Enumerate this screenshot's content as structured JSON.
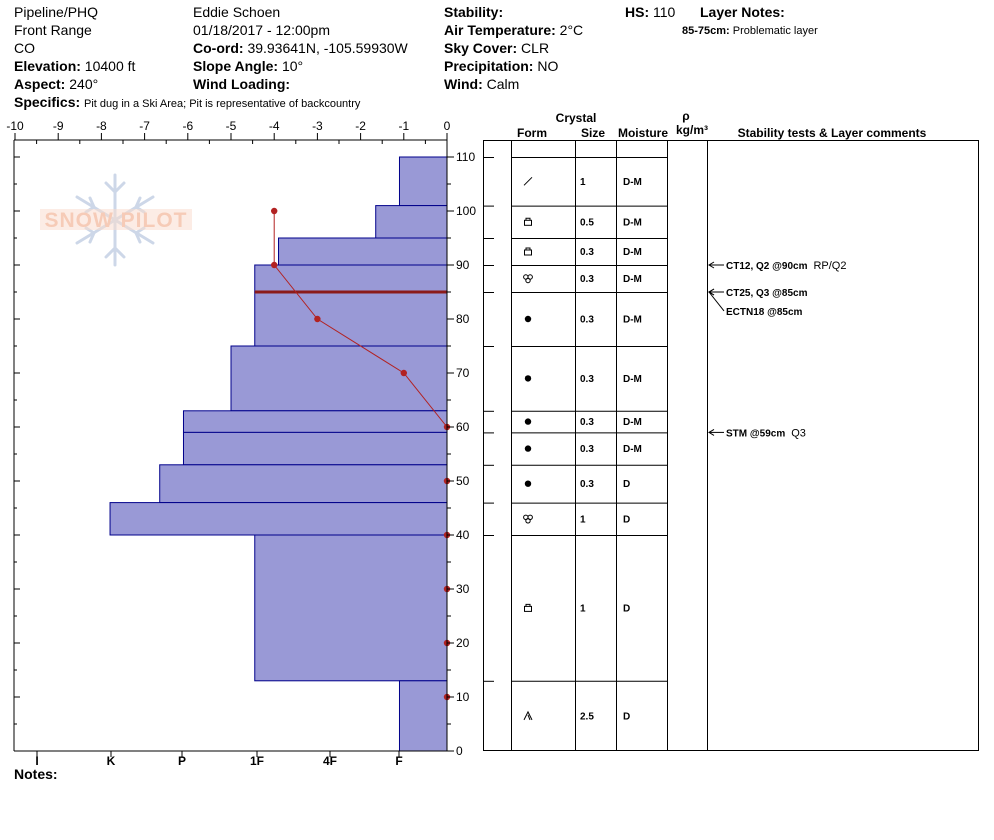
{
  "header": {
    "location": "Pipeline/PHQ",
    "range": "Front Range",
    "state": "CO",
    "elevation_label": "Elevation:",
    "elevation_value": "10400 ft",
    "aspect_label": "Aspect:",
    "aspect_value": "240°",
    "specifics_label": "Specifics:",
    "specifics_value": "Pit dug in a Ski Area; Pit is representative of backcountry",
    "observer": "Eddie Schoen",
    "datetime": "01/18/2017 - 12:00pm",
    "coord_label": "Co-ord:",
    "coord_value": "39.93641N, -105.59930W",
    "slope_label": "Slope Angle:",
    "slope_value": "10°",
    "wind_loading_label": "Wind Loading:",
    "wind_loading_value": "",
    "stability_label": "Stability:",
    "stability_value": "",
    "air_temp_label": "Air Temperature:",
    "air_temp_value": "2°C",
    "sky_label": "Sky Cover:",
    "sky_value": "CLR",
    "precip_label": "Precipitation:",
    "precip_value": "NO",
    "wind_label": "Wind:",
    "wind_value": "Calm",
    "hs_label": "HS:",
    "hs_value": "110",
    "layer_notes_label": "Layer Notes:",
    "layer_notes_range": "85-75cm:",
    "layer_notes_text": "Problematic layer",
    "notes_label": "Notes:"
  },
  "logo": {
    "text": "SNOW PILOT"
  },
  "table_headers": {
    "crystal": "Crystal",
    "form": "Form",
    "size": "Size",
    "moisture": "Moisture",
    "rho": "ρ",
    "density_unit": "kg/m³",
    "stability": "Stability tests & Layer comments"
  },
  "colors": {
    "hardness_fill": "#9999d6",
    "hardness_stroke": "#00008b",
    "temperature": "#b22222",
    "problem_layer": "#8b1a1a"
  },
  "chart_data": {
    "type": "snow_profile",
    "temperature_axis": {
      "ticks": [
        "-10",
        "-9",
        "-8",
        "-7",
        "-6",
        "-5",
        "-4",
        "-3",
        "-2",
        "-1",
        "0"
      ],
      "range": [
        -10,
        0
      ]
    },
    "depth_axis": {
      "ticks": [
        "110",
        "100",
        "90",
        "80",
        "70",
        "60",
        "50",
        "40",
        "30",
        "20",
        "10",
        "0"
      ],
      "range": [
        0,
        110
      ]
    },
    "hardness_axis": {
      "labels": [
        "I",
        "K",
        "P",
        "1F",
        "4F",
        "F"
      ]
    },
    "hardness_layers": [
      {
        "top": 110,
        "bottom": 101,
        "hardness": -1.1
      },
      {
        "top": 101,
        "bottom": 95,
        "hardness": -1.65
      },
      {
        "top": 95,
        "bottom": 90,
        "hardness": -3.9
      },
      {
        "top": 90,
        "bottom": 85,
        "hardness": -4.45
      },
      {
        "top": 85,
        "bottom": 75,
        "hardness": -4.45
      },
      {
        "top": 75,
        "bottom": 63,
        "hardness": -5.0
      },
      {
        "top": 63,
        "bottom": 59,
        "hardness": -6.1
      },
      {
        "top": 59,
        "bottom": 53,
        "hardness": -6.1
      },
      {
        "top": 53,
        "bottom": 46,
        "hardness": -6.65
      },
      {
        "top": 46,
        "bottom": 40,
        "hardness": -7.8
      },
      {
        "top": 40,
        "bottom": 13,
        "hardness": -4.45
      },
      {
        "top": 13,
        "bottom": 0,
        "hardness": -1.1
      }
    ],
    "temperature_profile": [
      {
        "depth": 100,
        "temp": -4
      },
      {
        "depth": 90,
        "temp": -4
      },
      {
        "depth": 80,
        "temp": -3
      },
      {
        "depth": 70,
        "temp": -1
      },
      {
        "depth": 60,
        "temp": 0
      },
      {
        "depth": 50,
        "temp": 0
      },
      {
        "depth": 40,
        "temp": 0
      },
      {
        "depth": 30,
        "temp": 0
      },
      {
        "depth": 20,
        "temp": 0
      },
      {
        "depth": 10,
        "temp": 0
      }
    ],
    "problem_layer_depth": 85,
    "layers": [
      {
        "top": 110,
        "bottom": 101,
        "form": "slash",
        "size": "1",
        "moisture": "D-M"
      },
      {
        "top": 101,
        "bottom": 95,
        "form": "faceted",
        "size": "0.5",
        "moisture": "D-M"
      },
      {
        "top": 95,
        "bottom": 90,
        "form": "faceted",
        "size": "0.3",
        "moisture": "D-M"
      },
      {
        "top": 90,
        "bottom": 85,
        "form": "clustered",
        "size": "0.3",
        "moisture": "D-M"
      },
      {
        "top": 85,
        "bottom": 75,
        "form": "dot",
        "size": "0.3",
        "moisture": "D-M"
      },
      {
        "top": 75,
        "bottom": 63,
        "form": "dot",
        "size": "0.3",
        "moisture": "D-M"
      },
      {
        "top": 63,
        "bottom": 59,
        "form": "dot",
        "size": "0.3",
        "moisture": "D-M"
      },
      {
        "top": 59,
        "bottom": 53,
        "form": "dot",
        "size": "0.3",
        "moisture": "D-M"
      },
      {
        "top": 53,
        "bottom": 46,
        "form": "dot",
        "size": "0.3",
        "moisture": "D"
      },
      {
        "top": 46,
        "bottom": 40,
        "form": "clustered",
        "size": "1",
        "moisture": "D"
      },
      {
        "top": 40,
        "bottom": 13,
        "form": "faceted",
        "size": "1",
        "moisture": "D"
      },
      {
        "top": 13,
        "bottom": 0,
        "form": "depth_hoar",
        "size": "2.5",
        "moisture": "D"
      }
    ],
    "stability_comments": [
      {
        "arrow_depth": 90,
        "label_depth": 90,
        "text": "CT12, Q2 @90cm",
        "extra": "RP/Q2"
      },
      {
        "arrow_depth": 85,
        "label_depth": 85,
        "text": "CT25, Q3 @85cm",
        "extra": ""
      },
      {
        "arrow_depth": 85,
        "label_depth": 81.5,
        "text": "ECTN18 @85cm",
        "extra": ""
      },
      {
        "arrow_depth": 59,
        "label_depth": 59,
        "text": "STM @59cm",
        "extra": "Q3"
      }
    ]
  }
}
